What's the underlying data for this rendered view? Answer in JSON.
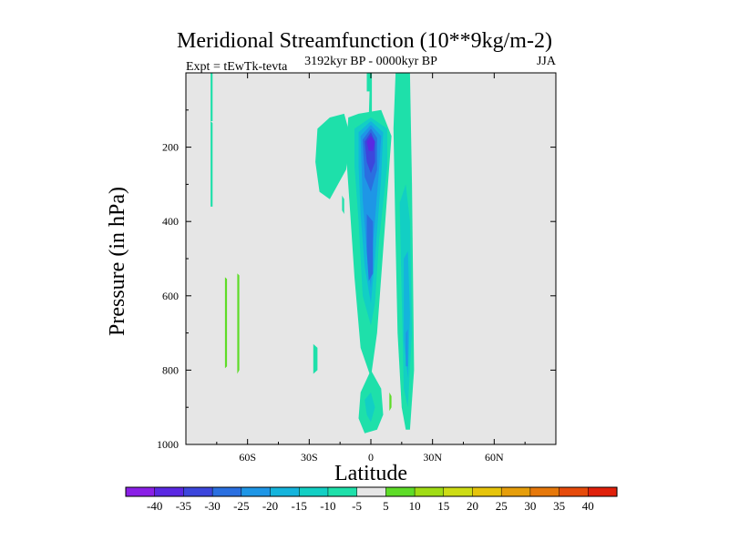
{
  "chart_data": {
    "type": "contour",
    "title": "Meridional Streamfunction (10**9kg/m-2)",
    "left_label": "Expt = tEwTk-tevta",
    "center_label": "3192kyr BP - 0000kyr BP",
    "right_label": "JJA",
    "xlabel": "Latitude",
    "ylabel": "Pressure (in hPa)",
    "xlim": [
      -90,
      90
    ],
    "ylim": [
      1000,
      0
    ],
    "x_ticks": [
      {
        "value": -60,
        "label": "60S"
      },
      {
        "value": -30,
        "label": "30S"
      },
      {
        "value": 0,
        "label": "0"
      },
      {
        "value": 30,
        "label": "30N"
      },
      {
        "value": 60,
        "label": "60N"
      }
    ],
    "y_ticks": [
      {
        "value": 200,
        "label": "200"
      },
      {
        "value": 400,
        "label": "400"
      },
      {
        "value": 600,
        "label": "600"
      },
      {
        "value": 800,
        "label": "800"
      },
      {
        "value": 1000,
        "label": "1000"
      }
    ],
    "background_color": "#e6e6e6",
    "colorbar": {
      "levels": [
        "-40",
        "-35",
        "-30",
        "-25",
        "-20",
        "-15",
        "-10",
        "-5",
        "5",
        "10",
        "15",
        "20",
        "25",
        "30",
        "35",
        "40"
      ],
      "colors": [
        "#8a1fe6",
        "#5a28e2",
        "#3c46dc",
        "#2a6fe0",
        "#1e96e6",
        "#14b4dc",
        "#12cfc4",
        "#1ee0aa",
        "#e6e6e6",
        "#5edc28",
        "#a0dc14",
        "#cddc14",
        "#e6c40a",
        "#e69e0a",
        "#e6780a",
        "#e64a0a",
        "#e0200a"
      ]
    },
    "regions": [
      {
        "level": "-10",
        "color": "#1ee0aa",
        "points": [
          [
            -0.5,
            0
          ],
          [
            0.5,
            0
          ],
          [
            0.5,
            200
          ],
          [
            -0.5,
            600
          ],
          [
            -0.5,
            500
          ],
          [
            -1,
            400
          ],
          [
            -1,
            120
          ],
          [
            -0.5,
            20
          ]
        ]
      },
      {
        "level": "-10",
        "color": "#1ee0aa",
        "points": [
          [
            -78,
            130
          ],
          [
            -77,
            135
          ],
          [
            -77,
            360
          ],
          [
            -78,
            360
          ]
        ]
      },
      {
        "level": "-10",
        "color": "#1ee0aa",
        "points": [
          [
            -78,
            0
          ],
          [
            -77,
            0
          ],
          [
            -77,
            130
          ],
          [
            -78,
            130
          ]
        ]
      },
      {
        "level": "-10",
        "color": "#1ee0aa",
        "points": [
          [
            -26,
            150
          ],
          [
            -20,
            120
          ],
          [
            -13,
            110
          ],
          [
            -10,
            170
          ],
          [
            -12,
            260
          ],
          [
            -20,
            340
          ],
          [
            -25,
            320
          ],
          [
            -27,
            240
          ]
        ]
      },
      {
        "level": "-10",
        "color": "#1ee0aa",
        "points": [
          [
            -11,
            120
          ],
          [
            -6,
            110
          ],
          [
            5,
            100
          ],
          [
            10,
            170
          ],
          [
            7,
            400
          ],
          [
            3,
            700
          ],
          [
            0,
            820
          ],
          [
            -5,
            740
          ],
          [
            -8,
            550
          ],
          [
            -10,
            380
          ],
          [
            -12,
            220
          ]
        ]
      },
      {
        "level": "-10",
        "color": "#1ee0aa",
        "points": [
          [
            -2,
            0
          ],
          [
            0,
            0
          ],
          [
            0,
            50
          ],
          [
            -2,
            50
          ]
        ]
      },
      {
        "level": "-10",
        "color": "#1ee0aa",
        "points": [
          [
            12,
            0
          ],
          [
            19,
            0
          ],
          [
            20,
            300
          ],
          [
            21,
            800
          ],
          [
            19,
            960
          ],
          [
            17,
            960
          ],
          [
            15,
            900
          ],
          [
            13,
            700
          ],
          [
            12,
            450
          ],
          [
            11,
            150
          ]
        ]
      },
      {
        "level": "-10",
        "color": "#1ee0aa",
        "points": [
          [
            -28,
            730
          ],
          [
            -26,
            740
          ],
          [
            -26,
            800
          ],
          [
            -28,
            810
          ]
        ]
      },
      {
        "level": "-10",
        "color": "#1ee0aa",
        "points": [
          [
            -5,
            860
          ],
          [
            0,
            800
          ],
          [
            5,
            850
          ],
          [
            6,
            920
          ],
          [
            3,
            960
          ],
          [
            -3,
            970
          ],
          [
            -6,
            930
          ]
        ]
      },
      {
        "level": "-10",
        "color": "#1ee0aa",
        "points": [
          [
            -14,
            330
          ],
          [
            -13,
            340
          ],
          [
            -13,
            380
          ],
          [
            -14,
            370
          ]
        ]
      },
      {
        "level": "-15",
        "color": "#12cfc4",
        "points": [
          [
            -8,
            150
          ],
          [
            0,
            120
          ],
          [
            8,
            150
          ],
          [
            8,
            250
          ],
          [
            4,
            450
          ],
          [
            2,
            620
          ],
          [
            0,
            680
          ],
          [
            -4,
            600
          ],
          [
            -6,
            400
          ],
          [
            -8,
            250
          ]
        ]
      },
      {
        "level": "-15",
        "color": "#12cfc4",
        "points": [
          [
            14,
            350
          ],
          [
            17,
            300
          ],
          [
            19,
            400
          ],
          [
            20,
            700
          ],
          [
            18,
            900
          ],
          [
            16,
            850
          ],
          [
            15,
            600
          ]
        ]
      },
      {
        "level": "-15",
        "color": "#12cfc4",
        "points": [
          [
            -3,
            880
          ],
          [
            0,
            860
          ],
          [
            2,
            900
          ],
          [
            0,
            940
          ],
          [
            -2,
            920
          ]
        ]
      },
      {
        "level": "-20",
        "color": "#14b4dc",
        "points": [
          [
            -6,
            160
          ],
          [
            0,
            130
          ],
          [
            6,
            160
          ],
          [
            5,
            280
          ],
          [
            2,
            500
          ],
          [
            0,
            620
          ],
          [
            -3,
            520
          ],
          [
            -5,
            380
          ],
          [
            -6,
            250
          ]
        ]
      },
      {
        "level": "-20",
        "color": "#14b4dc",
        "points": [
          [
            16,
            500
          ],
          [
            18,
            480
          ],
          [
            19,
            650
          ],
          [
            18,
            820
          ],
          [
            16,
            720
          ]
        ]
      },
      {
        "level": "-25",
        "color": "#1e96e6",
        "points": [
          [
            -5,
            170
          ],
          [
            0,
            140
          ],
          [
            5,
            170
          ],
          [
            4,
            260
          ],
          [
            1,
            460
          ],
          [
            0,
            580
          ],
          [
            -2,
            480
          ],
          [
            -4,
            340
          ]
        ]
      },
      {
        "level": "-25",
        "color": "#1e96e6",
        "points": [
          [
            17,
            700
          ],
          [
            18,
            690
          ],
          [
            18,
            790
          ],
          [
            17,
            790
          ]
        ]
      },
      {
        "level": "-30",
        "color": "#2a6fe0",
        "points": [
          [
            -4,
            180
          ],
          [
            0,
            150
          ],
          [
            3,
            175
          ],
          [
            3,
            260
          ],
          [
            0,
            320
          ],
          [
            -3,
            280
          ]
        ]
      },
      {
        "level": "-30",
        "color": "#2a6fe0",
        "points": [
          [
            -2,
            380
          ],
          [
            1,
            400
          ],
          [
            1,
            540
          ],
          [
            -1,
            560
          ],
          [
            -2,
            480
          ]
        ]
      },
      {
        "level": "-35",
        "color": "#3c46dc",
        "points": [
          [
            -3,
            185
          ],
          [
            0,
            160
          ],
          [
            2,
            185
          ],
          [
            2,
            240
          ],
          [
            0,
            270
          ],
          [
            -2,
            240
          ]
        ]
      },
      {
        "level": "-40",
        "color": "#5a28e2",
        "points": [
          [
            -2,
            185
          ],
          [
            0,
            170
          ],
          [
            2,
            185
          ],
          [
            1,
            210
          ],
          [
            -1,
            210
          ]
        ]
      },
      {
        "level": "5",
        "color": "#5edc28",
        "points": [
          [
            -71,
            550
          ],
          [
            -70,
            555
          ],
          [
            -70,
            790
          ],
          [
            -71,
            795
          ]
        ]
      },
      {
        "level": "5",
        "color": "#5edc28",
        "points": [
          [
            -65,
            540
          ],
          [
            -64,
            545
          ],
          [
            -64,
            800
          ],
          [
            -65,
            810
          ]
        ]
      },
      {
        "level": "5",
        "color": "#5edc28",
        "points": [
          [
            9,
            860
          ],
          [
            10,
            870
          ],
          [
            10,
            900
          ],
          [
            9,
            910
          ]
        ]
      }
    ]
  }
}
